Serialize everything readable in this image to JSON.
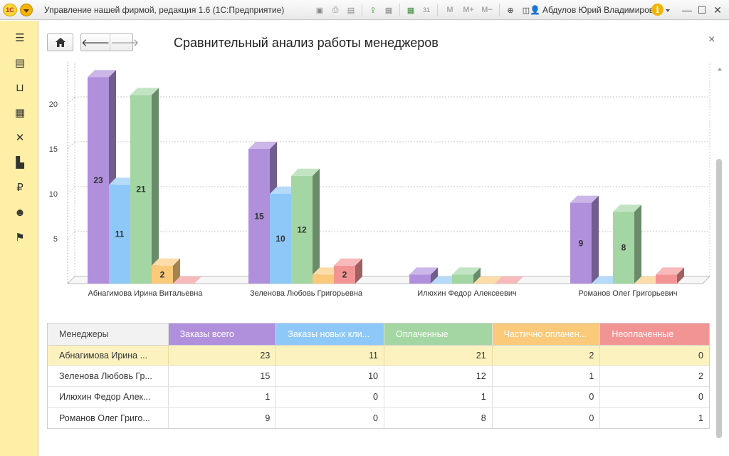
{
  "window": {
    "logo_text": "1С",
    "title": "Управление нашей фирмой, редакция 1.6  (1С:Предприятие)",
    "user": "Абдулов Юрий Владимирович",
    "toolbar_icons": [
      "save-icon",
      "print-icon",
      "print-preview-icon",
      "upload-icon",
      "scan-icon",
      "calculator-icon",
      "calendar-icon"
    ],
    "memory_buttons": [
      "M",
      "M+",
      "M−"
    ],
    "zoom_icon": "zoom-icon",
    "panel_icon": "panel-toggle-icon"
  },
  "sidebar": {
    "icons": [
      "hamburger-menu-icon",
      "contact-card-icon",
      "basket-icon",
      "warehouse-icon",
      "tools-icon",
      "factory-icon",
      "ruble-icon",
      "people-icon",
      "flag-icon"
    ]
  },
  "page": {
    "title": "Сравнительный анализ работы менеджеров",
    "close_label": "×"
  },
  "chart_data": {
    "type": "bar",
    "style": "3d-clustered",
    "categories": [
      "Абнагимова Ирина Витальевна",
      "Зеленова Любовь Григорьевна",
      "Илюхин Федор Алексеевич",
      "Романов Олег Григорьевич"
    ],
    "series": [
      {
        "name": "Заказы всего",
        "color": "#b08fdc",
        "values": [
          23,
          15,
          1,
          9
        ]
      },
      {
        "name": "Заказы новых клиентов",
        "color": "#8ec8f8",
        "values": [
          11,
          10,
          0,
          0
        ]
      },
      {
        "name": "Оплаченные",
        "color": "#a3d6a3",
        "values": [
          21,
          12,
          1,
          8
        ]
      },
      {
        "name": "Частично оплаченные",
        "color": "#fbc97a",
        "values": [
          2,
          1,
          0,
          0
        ]
      },
      {
        "name": "Неоплаченные",
        "color": "#f39494",
        "values": [
          0,
          2,
          0,
          1
        ]
      }
    ],
    "yticks": [
      5,
      10,
      15,
      20,
      25
    ],
    "ylim": [
      0,
      25
    ],
    "grid": true,
    "data_labels_min": 2
  },
  "table": {
    "columns": [
      "Менеджеры",
      "Заказы всего",
      "Заказы новых кли...",
      "Оплаченные",
      "Частично оплачен...",
      "Неоплаченные"
    ],
    "column_colors": [
      "#f2f2f2",
      "#b08fdc",
      "#8ec8f8",
      "#a3d6a3",
      "#fbc97a",
      "#f39494"
    ],
    "rows": [
      {
        "name": "Абнагимова Ирина ...",
        "values": [
          "23",
          "11",
          "21",
          "2",
          "0"
        ],
        "selected": true
      },
      {
        "name": "Зеленова Любовь Гр...",
        "values": [
          "15",
          "10",
          "12",
          "1",
          "2"
        ],
        "selected": false
      },
      {
        "name": "Илюхин Федор Алек...",
        "values": [
          "1",
          "0",
          "1",
          "0",
          "0"
        ],
        "selected": false
      },
      {
        "name": "Романов Олег Григо...",
        "values": [
          "9",
          "0",
          "8",
          "0",
          "1"
        ],
        "selected": false
      }
    ]
  }
}
